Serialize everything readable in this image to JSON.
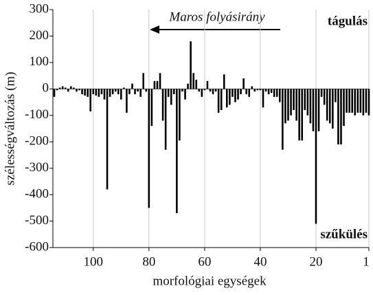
{
  "chart_data": {
    "type": "bar",
    "xlabel": "morfológiai egységek",
    "ylabel": "szélességváltozás (m)",
    "annotation_direction": "Maros folyásirány",
    "annotation_top": "tágulás",
    "annotation_bottom": "szűkülés",
    "color": "#000000",
    "xlim": [
      114.5,
      1
    ],
    "xticks": [
      100,
      80,
      60,
      40,
      20,
      1
    ],
    "ylim": [
      -600,
      300
    ],
    "yticks": [
      -600,
      -500,
      -400,
      -300,
      -200,
      -100,
      0,
      100,
      200,
      300
    ],
    "grid": true,
    "x": [
      114,
      113,
      112,
      111,
      110,
      109,
      108,
      107,
      106,
      105,
      104,
      103,
      102,
      101,
      100,
      99,
      98,
      97,
      96,
      95,
      94,
      93,
      92,
      91,
      90,
      89,
      88,
      87,
      86,
      85,
      84,
      83,
      82,
      81,
      80,
      79,
      78,
      77,
      76,
      75,
      74,
      73,
      72,
      71,
      70,
      69,
      68,
      67,
      66,
      65,
      64,
      63,
      62,
      61,
      60,
      59,
      58,
      57,
      56,
      55,
      54,
      53,
      52,
      51,
      50,
      49,
      48,
      47,
      46,
      45,
      44,
      43,
      42,
      41,
      40,
      39,
      38,
      37,
      36,
      35,
      34,
      33,
      32,
      31,
      30,
      29,
      28,
      27,
      26,
      25,
      24,
      23,
      22,
      21,
      20,
      19,
      18,
      17,
      16,
      15,
      14,
      13,
      12,
      11,
      10,
      9,
      8,
      7,
      6,
      5,
      4,
      3,
      2,
      1
    ],
    "values": [
      -30,
      -5,
      5,
      10,
      5,
      -10,
      10,
      5,
      -10,
      -5,
      -20,
      -25,
      -30,
      -85,
      -20,
      -25,
      -30,
      -20,
      -40,
      -380,
      -30,
      -20,
      -10,
      -20,
      -40,
      5,
      -90,
      -20,
      20,
      -20,
      -10,
      -30,
      60,
      -10,
      -450,
      -140,
      30,
      30,
      60,
      -120,
      -230,
      -30,
      -60,
      -20,
      -470,
      -195,
      -10,
      -40,
      20,
      180,
      60,
      35,
      -10,
      -30,
      -5,
      30,
      -10,
      -20,
      -10,
      -90,
      -80,
      55,
      -70,
      -60,
      -30,
      -50,
      -40,
      -20,
      40,
      -20,
      -30,
      10,
      -10,
      -5,
      -5,
      -70,
      -10,
      -20,
      -15,
      -30,
      -30,
      -50,
      -230,
      -130,
      -120,
      -100,
      -80,
      -120,
      -195,
      -195,
      -80,
      -100,
      -130,
      -160,
      -510,
      -160,
      -30,
      -60,
      -120,
      -130,
      -150,
      -50,
      -210,
      -210,
      -140,
      -90,
      -90,
      -90,
      -100,
      -90,
      -90,
      -100,
      -90,
      -100
    ]
  }
}
